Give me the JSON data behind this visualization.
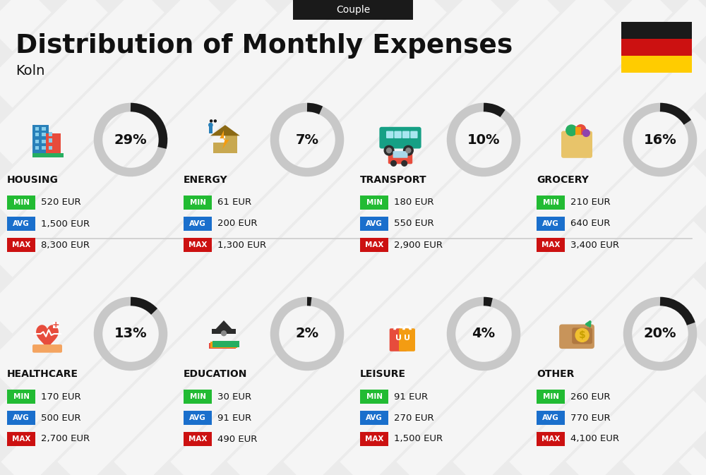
{
  "title": "Distribution of Monthly Expenses",
  "subtitle": "Couple",
  "city": "Koln",
  "bg_color": "#ebebeb",
  "categories": [
    {
      "name": "HOUSING",
      "pct": 29,
      "min": "520 EUR",
      "avg": "1,500 EUR",
      "max": "8,300 EUR",
      "row": 0,
      "col": 0
    },
    {
      "name": "ENERGY",
      "pct": 7,
      "min": "61 EUR",
      "avg": "200 EUR",
      "max": "1,300 EUR",
      "row": 0,
      "col": 1
    },
    {
      "name": "TRANSPORT",
      "pct": 10,
      "min": "180 EUR",
      "avg": "550 EUR",
      "max": "2,900 EUR",
      "row": 0,
      "col": 2
    },
    {
      "name": "GROCERY",
      "pct": 16,
      "min": "210 EUR",
      "avg": "640 EUR",
      "max": "3,400 EUR",
      "row": 0,
      "col": 3
    },
    {
      "name": "HEALTHCARE",
      "pct": 13,
      "min": "170 EUR",
      "avg": "500 EUR",
      "max": "2,700 EUR",
      "row": 1,
      "col": 0
    },
    {
      "name": "EDUCATION",
      "pct": 2,
      "min": "30 EUR",
      "avg": "91 EUR",
      "max": "490 EUR",
      "row": 1,
      "col": 1
    },
    {
      "name": "LEISURE",
      "pct": 4,
      "min": "91 EUR",
      "avg": "270 EUR",
      "max": "1,500 EUR",
      "row": 1,
      "col": 2
    },
    {
      "name": "OTHER",
      "pct": 20,
      "min": "260 EUR",
      "avg": "770 EUR",
      "max": "4,100 EUR",
      "row": 1,
      "col": 3
    }
  ],
  "min_color": "#22bb33",
  "avg_color": "#1a6fcc",
  "max_color": "#cc1111",
  "text_color": "#111111",
  "donut_bg": "#c8c8c8",
  "donut_fg": "#1a1a1a",
  "flag_colors": [
    "#1a1a1a",
    "#cc1111",
    "#ffcc00"
  ],
  "stripe_color": "#ffffff",
  "stripe_alpha": 0.55
}
